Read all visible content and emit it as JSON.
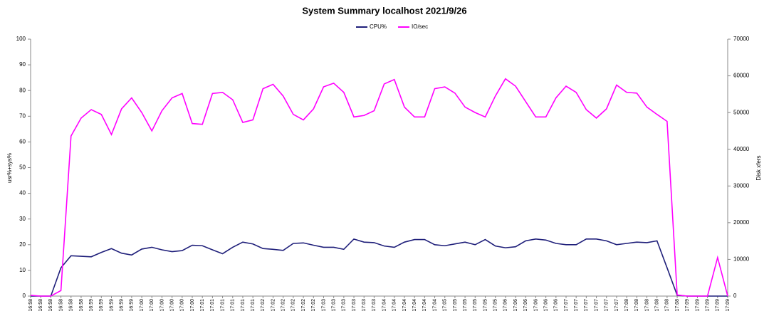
{
  "chart_data": {
    "type": "line",
    "title": "System Summary localhost  2021/9/26",
    "ylabel": "usr%+sys%",
    "y2label": "Disk xfers",
    "categories": [
      "16:58",
      "16:58",
      "16:58",
      "16:58",
      "16:58",
      "16:58",
      "16:59",
      "16:59",
      "16:59",
      "16:59",
      "16:59",
      "17:00",
      "17:00",
      "17:00",
      "17:00",
      "17:00",
      "17:00",
      "17:01",
      "17:01",
      "17:01",
      "17:01",
      "17:01",
      "17:01",
      "17:02",
      "17:02",
      "17:02",
      "17:02",
      "17:02",
      "17:02",
      "17:03",
      "17:03",
      "17:03",
      "17:03",
      "17:03",
      "17:03",
      "17:04",
      "17:04",
      "17:04",
      "17:04",
      "17:04",
      "17:04",
      "17:05",
      "17:05",
      "17:05",
      "17:05",
      "17:05",
      "17:05",
      "17:06",
      "17:06",
      "17:06",
      "17:06",
      "17:06",
      "17:06",
      "17:07",
      "17:07",
      "17:07",
      "17:07",
      "17:07",
      "17:07",
      "17:08",
      "17:08",
      "17:08",
      "17:08",
      "17:08",
      "17:08",
      "17:09",
      "17:09",
      "17:09",
      "17:09",
      "17:09"
    ],
    "series": [
      {
        "name": "CPU%",
        "color": "#1f1f7a",
        "values": [
          0,
          0,
          0,
          11,
          15.7,
          15.5,
          15.3,
          17,
          18.5,
          16.7,
          16,
          18.3,
          19,
          18,
          17.3,
          17.7,
          19.8,
          19.6,
          18,
          16.5,
          19,
          21,
          20.3,
          18.5,
          18.2,
          17.8,
          20.5,
          20.7,
          19.8,
          19,
          19,
          18.2,
          22.2,
          21,
          20.8,
          19.5,
          19,
          21,
          22,
          22,
          20,
          19.6,
          20.3,
          21,
          20,
          22,
          19.5,
          18.8,
          19.2,
          21.5,
          22.2,
          21.8,
          20.5,
          20,
          20,
          22.2,
          22.2,
          21.5,
          20,
          20.5,
          21,
          20.8,
          21.5,
          11,
          0.3,
          0,
          0,
          0,
          0,
          0
        ]
      },
      {
        "name": "IO/sec",
        "color": "#ff00ff",
        "axis": "y2",
        "values": [
          200,
          0,
          0,
          1500,
          43600,
          48500,
          50800,
          49500,
          44000,
          51000,
          54000,
          50000,
          45000,
          50500,
          54000,
          55200,
          47000,
          46800,
          55200,
          55500,
          53500,
          47300,
          48000,
          56500,
          57700,
          54500,
          49500,
          48000,
          51000,
          57000,
          58000,
          55500,
          48800,
          49200,
          50500,
          57800,
          59000,
          51500,
          48800,
          48800,
          56500,
          57000,
          55300,
          51500,
          50000,
          48800,
          54500,
          59200,
          57200,
          53000,
          48800,
          48800,
          54000,
          57200,
          55500,
          50800,
          48500,
          51000,
          57500,
          55500,
          55300,
          51500,
          49500,
          47600,
          300,
          0,
          0,
          0,
          10500,
          0
        ]
      }
    ],
    "ylim": [
      0,
      100
    ],
    "yticks": [
      0,
      10,
      20,
      30,
      40,
      50,
      60,
      70,
      80,
      90,
      100
    ],
    "y2lim": [
      0,
      70000
    ],
    "y2ticks": [
      0,
      10000,
      20000,
      30000,
      40000,
      50000,
      60000,
      70000
    ],
    "legend": "top"
  }
}
